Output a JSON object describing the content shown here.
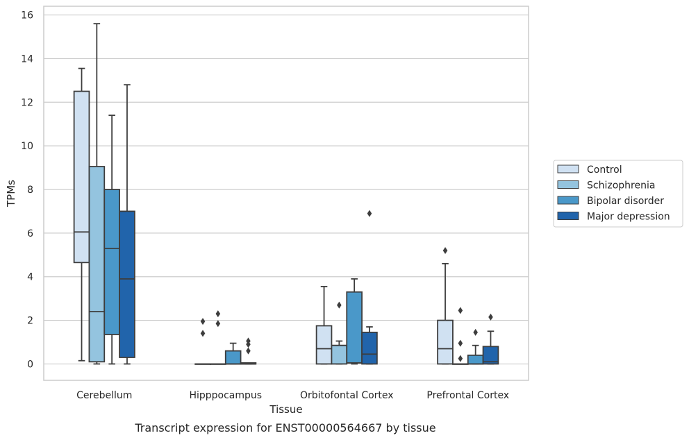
{
  "chart_data": {
    "type": "box",
    "caption": "Transcript expression for ENST00000564667 by tissue",
    "xlabel": "Tissue",
    "ylabel": "TPMs",
    "ylim": [
      -0.75,
      16.4
    ],
    "yticks": [
      0,
      2,
      4,
      6,
      8,
      10,
      12,
      14,
      16
    ],
    "grid": true,
    "legend_position": "right",
    "categories": [
      "Cerebellum",
      "Hipppocampus",
      "Orbitofontal Cortex",
      "Prefrontal Cortex"
    ],
    "series": [
      {
        "name": "Control",
        "color": "#d0e1f2",
        "boxes": [
          {
            "whislo": 0.15,
            "q1": 4.65,
            "med": 6.05,
            "q3": 12.5,
            "whishi": 13.55,
            "fliers": []
          },
          {
            "whislo": 0.0,
            "q1": 0.0,
            "med": 0.0,
            "q3": 0.0,
            "whishi": 0.0,
            "fliers": [
              1.4,
              1.95
            ]
          },
          {
            "whislo": 0.0,
            "q1": 0.0,
            "med": 0.7,
            "q3": 1.75,
            "whishi": 3.55,
            "fliers": []
          },
          {
            "whislo": 0.0,
            "q1": 0.0,
            "med": 0.7,
            "q3": 2.0,
            "whishi": 4.6,
            "fliers": [
              5.2
            ]
          }
        ]
      },
      {
        "name": "Schizophrenia",
        "color": "#94c4df",
        "boxes": [
          {
            "whislo": 0.0,
            "q1": 0.1,
            "med": 2.4,
            "q3": 9.05,
            "whishi": 15.6,
            "fliers": []
          },
          {
            "whislo": 0.0,
            "q1": 0.0,
            "med": 0.0,
            "q3": 0.0,
            "whishi": 0.0,
            "fliers": [
              1.85,
              2.3
            ]
          },
          {
            "whislo": 0.0,
            "q1": 0.0,
            "med": 0.85,
            "q3": 0.85,
            "whishi": 1.05,
            "fliers": [
              2.7
            ]
          },
          {
            "whislo": 0.0,
            "q1": 0.0,
            "med": 0.0,
            "q3": 0.0,
            "whishi": 0.0,
            "fliers": [
              0.25,
              0.95,
              2.45
            ]
          }
        ]
      },
      {
        "name": "Bipolar disorder",
        "color": "#4a98c9",
        "boxes": [
          {
            "whislo": 0.0,
            "q1": 1.35,
            "med": 5.3,
            "q3": 8.0,
            "whishi": 11.4,
            "fliers": []
          },
          {
            "whislo": 0.0,
            "q1": 0.0,
            "med": 0.0,
            "q3": 0.6,
            "whishi": 0.95,
            "fliers": []
          },
          {
            "whislo": 0.0,
            "q1": 0.05,
            "med": 0.05,
            "q3": 3.3,
            "whishi": 3.9,
            "fliers": []
          },
          {
            "whislo": 0.0,
            "q1": 0.0,
            "med": 0.0,
            "q3": 0.4,
            "whishi": 0.85,
            "fliers": [
              1.45
            ]
          }
        ]
      },
      {
        "name": "Major depression",
        "color": "#2164ab",
        "boxes": [
          {
            "whislo": 0.0,
            "q1": 0.3,
            "med": 3.9,
            "q3": 7.0,
            "whishi": 12.8,
            "fliers": []
          },
          {
            "whislo": 0.0,
            "q1": 0.0,
            "med": 0.0,
            "q3": 0.05,
            "whishi": 0.05,
            "fliers": [
              0.6,
              0.9,
              1.05
            ]
          },
          {
            "whislo": 0.0,
            "q1": 0.0,
            "med": 0.45,
            "q3": 1.45,
            "whishi": 1.7,
            "fliers": [
              6.9
            ]
          },
          {
            "whislo": 0.0,
            "q1": 0.0,
            "med": 0.1,
            "q3": 0.8,
            "whishi": 1.5,
            "fliers": [
              2.15
            ]
          }
        ]
      }
    ]
  }
}
